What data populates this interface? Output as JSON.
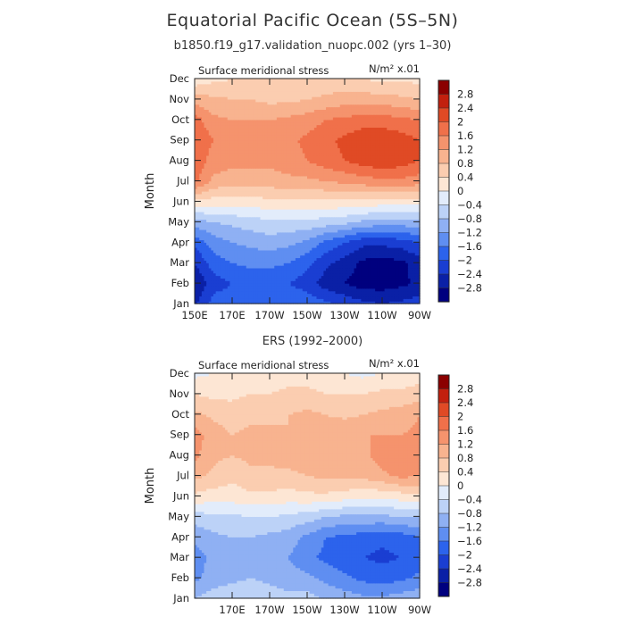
{
  "title": "Equatorial Pacific Ocean (5S–5N)",
  "subtitle": "b1850.f19_g17.validation_nuopc.002 (yrs 1–30)",
  "second_title": "ERS (1992–2000)",
  "colors": {
    "palette": [
      "#00007f",
      "#0a20a6",
      "#1a3ed2",
      "#2c63ec",
      "#5f8ef1",
      "#8fb0f3",
      "#bcd2f7",
      "#e2ecfb",
      "#fde6d4",
      "#fbcdb0",
      "#f8b38f",
      "#f5936d",
      "#f0704a",
      "#e04a25",
      "#c2200e",
      "#8b0000"
    ]
  },
  "chart_data": [
    {
      "type": "heatmap",
      "name": "model",
      "title": "Surface meridional stress",
      "units_label": "N/m² x.01",
      "xlabel": "",
      "ylabel": "Month",
      "x_ticks": [
        "150E",
        "170E",
        "170W",
        "150W",
        "130W",
        "110W",
        "90W"
      ],
      "x_tick_lons": [
        150,
        170,
        190,
        210,
        230,
        250,
        270
      ],
      "y_ticks": [
        "Jan",
        "Feb",
        "Mar",
        "Apr",
        "May",
        "Jun",
        "Jul",
        "Aug",
        "Sep",
        "Oct",
        "Nov",
        "Dec"
      ],
      "xlim": [
        150,
        270
      ],
      "levels": [
        -2.8,
        -2.4,
        -2,
        -1.6,
        -1.2,
        -0.8,
        -0.4,
        0,
        0.4,
        0.8,
        1.2,
        1.6,
        2,
        2.4,
        2.8
      ],
      "colorbar_labels": [
        "2.8",
        "2.4",
        "2",
        "1.6",
        "1.2",
        "0.8",
        "0.4",
        "0",
        "−0.4",
        "−0.8",
        "−1.2",
        "−1.6",
        "−2",
        "−2.4",
        "−2.8"
      ],
      "lons": [
        150,
        160,
        170,
        180,
        190,
        200,
        210,
        220,
        230,
        240,
        250,
        260,
        270
      ],
      "months": [
        "Jan",
        "Feb",
        "Mar",
        "Apr",
        "May",
        "Jun",
        "Jul",
        "Aug",
        "Sep",
        "Oct",
        "Nov",
        "Dec"
      ],
      "values": [
        [
          -2.5,
          -1.8,
          -1.7,
          -1.6,
          -1.6,
          -1.6,
          -1.7,
          -1.9,
          -2.1,
          -2.3,
          -2.4,
          -2.3,
          -2.2
        ],
        [
          -2.8,
          -2.2,
          -2.0,
          -1.9,
          -1.9,
          -2.0,
          -2.2,
          -2.6,
          -2.8,
          -3.0,
          -3.0,
          -2.9,
          -2.7
        ],
        [
          -2.4,
          -1.8,
          -1.6,
          -1.5,
          -1.5,
          -1.6,
          -1.9,
          -2.3,
          -2.6,
          -2.9,
          -3.0,
          -2.9,
          -2.6
        ],
        [
          -1.9,
          -1.4,
          -1.2,
          -1.1,
          -1.0,
          -1.1,
          -1.3,
          -1.7,
          -2.0,
          -2.3,
          -2.3,
          -2.2,
          -2.0
        ],
        [
          -1.0,
          -0.8,
          -0.7,
          -0.6,
          -0.5,
          -0.5,
          -0.5,
          -0.6,
          -0.7,
          -0.9,
          -1.0,
          -1.0,
          -0.9
        ],
        [
          0.3,
          0.2,
          0.2,
          0.2,
          0.3,
          0.3,
          0.3,
          0.3,
          0.3,
          0.3,
          0.2,
          0.2,
          0.2
        ],
        [
          1.7,
          1.1,
          1.0,
          1.0,
          1.0,
          1.1,
          1.1,
          1.2,
          1.3,
          1.4,
          1.5,
          1.5,
          1.4
        ],
        [
          1.9,
          1.4,
          1.3,
          1.3,
          1.3,
          1.4,
          1.6,
          1.8,
          2.0,
          2.2,
          2.3,
          2.2,
          2.0
        ],
        [
          2.0,
          1.6,
          1.4,
          1.4,
          1.4,
          1.5,
          1.7,
          1.9,
          2.1,
          2.3,
          2.3,
          2.2,
          2.0
        ],
        [
          1.8,
          1.3,
          1.2,
          1.2,
          1.2,
          1.3,
          1.4,
          1.6,
          1.7,
          1.8,
          1.8,
          1.7,
          1.6
        ],
        [
          1.0,
          0.9,
          0.8,
          0.8,
          0.7,
          0.7,
          0.8,
          0.9,
          1.0,
          1.0,
          1.0,
          0.9,
          0.8
        ],
        [
          0.1,
          0.3,
          0.4,
          0.5,
          0.5,
          0.5,
          0.5,
          0.5,
          0.5,
          0.4,
          0.3,
          0.3,
          0.3
        ]
      ]
    },
    {
      "type": "heatmap",
      "name": "observations",
      "title": "Surface meridional stress",
      "units_label": "N/m² x.01",
      "xlabel": "",
      "ylabel": "Month",
      "x_ticks": [
        "170E",
        "170W",
        "150W",
        "130W",
        "110W",
        "90W"
      ],
      "x_tick_lons": [
        170,
        190,
        210,
        230,
        250,
        270
      ],
      "y_ticks": [
        "Jan",
        "Feb",
        "Mar",
        "Apr",
        "May",
        "Jun",
        "Jul",
        "Aug",
        "Sep",
        "Oct",
        "Nov",
        "Dec"
      ],
      "xlim": [
        150,
        270
      ],
      "levels": [
        -2.8,
        -2.4,
        -2,
        -1.6,
        -1.2,
        -0.8,
        -0.4,
        0,
        0.4,
        0.8,
        1.2,
        1.6,
        2,
        2.4,
        2.8
      ],
      "colorbar_labels": [
        "2.8",
        "2.4",
        "2",
        "1.6",
        "1.2",
        "0.8",
        "0.4",
        "0",
        "−0.4",
        "−0.8",
        "−1.2",
        "−1.6",
        "−2",
        "−2.4",
        "−2.8"
      ],
      "lons": [
        150,
        160,
        170,
        180,
        190,
        200,
        210,
        220,
        230,
        240,
        250,
        260,
        270
      ],
      "months": [
        "Jan",
        "Feb",
        "Mar",
        "Apr",
        "May",
        "Jun",
        "Jul",
        "Aug",
        "Sep",
        "Oct",
        "Nov",
        "Dec"
      ],
      "values": [
        [
          -0.8,
          -0.6,
          -0.5,
          -0.4,
          -0.6,
          -0.7,
          -0.6,
          -0.9,
          -1.0,
          -1.1,
          -1.1,
          -1.0,
          -0.9
        ],
        [
          -1.3,
          -1.0,
          -0.9,
          -0.8,
          -0.9,
          -1.0,
          -1.1,
          -1.3,
          -1.5,
          -1.7,
          -1.8,
          -1.7,
          -1.5
        ],
        [
          -1.4,
          -1.1,
          -1.0,
          -1.0,
          -1.1,
          -1.2,
          -1.5,
          -1.7,
          -1.9,
          -2.0,
          -2.1,
          -2.0,
          -1.8
        ],
        [
          -1.1,
          -0.9,
          -0.8,
          -0.8,
          -0.9,
          -1.0,
          -1.3,
          -1.6,
          -1.7,
          -1.8,
          -1.9,
          -1.8,
          -1.6
        ],
        [
          -0.6,
          -0.5,
          -0.5,
          -0.4,
          -0.4,
          -0.5,
          -0.6,
          -0.8,
          -0.9,
          -0.9,
          -0.9,
          -0.8,
          -0.8
        ],
        [
          0.3,
          0.2,
          0.2,
          0.3,
          0.3,
          0.2,
          0.3,
          0.3,
          0.2,
          0.1,
          0.1,
          0.2,
          0.3
        ],
        [
          0.9,
          0.7,
          0.5,
          0.7,
          0.7,
          0.7,
          0.8,
          0.9,
          0.9,
          0.9,
          1.1,
          1.3,
          1.2
        ],
        [
          1.3,
          0.9,
          0.8,
          0.9,
          0.9,
          1.0,
          1.0,
          1.0,
          1.0,
          1.1,
          1.4,
          1.6,
          1.3
        ],
        [
          1.4,
          1.0,
          0.8,
          0.9,
          0.9,
          0.8,
          0.9,
          1.0,
          1.2,
          1.2,
          1.2,
          1.2,
          1.3
        ],
        [
          0.9,
          0.7,
          0.6,
          0.7,
          0.7,
          0.8,
          0.9,
          0.8,
          0.7,
          0.8,
          0.9,
          1.0,
          1.2
        ],
        [
          0.4,
          0.3,
          0.3,
          0.4,
          0.4,
          0.5,
          0.5,
          0.4,
          0.4,
          0.4,
          0.5,
          0.5,
          0.6
        ],
        [
          -0.1,
          0.0,
          0.1,
          0.1,
          0.2,
          0.2,
          0.2,
          0.1,
          0.0,
          -0.1,
          0.0,
          0.1,
          0.2
        ]
      ]
    }
  ]
}
